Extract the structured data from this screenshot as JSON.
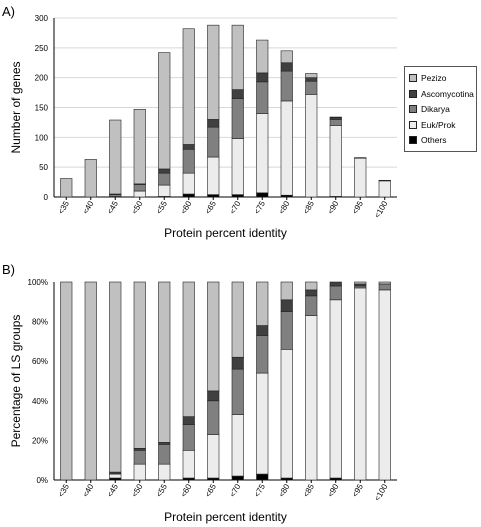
{
  "panels": {
    "a_label": "A)",
    "b_label": "B)"
  },
  "legend": {
    "items": [
      {
        "label": "Pezizo",
        "color": "#c0c0c0"
      },
      {
        "label": "Ascomycotina",
        "color": "#404040"
      },
      {
        "label": "Dikarya",
        "color": "#808080"
      },
      {
        "label": "Euk/Prok",
        "color": "#ececec"
      },
      {
        "label": "Others",
        "color": "#000000"
      }
    ]
  },
  "chart_data": [
    {
      "type": "bar",
      "stacked": true,
      "ylabel": "Number of genes",
      "xlabel": "Protein percent identity",
      "ylim": [
        0,
        300
      ],
      "yticks": [
        "0",
        "50",
        "100",
        "150",
        "200",
        "250",
        "300"
      ],
      "grid": true,
      "categories": [
        "<35",
        "<40",
        "<45",
        "<50",
        "<55",
        "<60",
        "<65",
        "<70",
        "<75",
        "<80",
        "<85",
        "<90",
        "<95",
        "<100"
      ],
      "series": [
        {
          "name": "Others",
          "values": [
            0,
            0,
            1,
            0,
            1,
            5,
            4,
            4,
            7,
            3,
            0,
            1,
            0,
            0
          ]
        },
        {
          "name": "Euk/Prok",
          "values": [
            0,
            0,
            2,
            10,
            19,
            35,
            63,
            94,
            133,
            158,
            172,
            119,
            65,
            27
          ]
        },
        {
          "name": "Dikarya",
          "values": [
            0,
            0,
            1,
            11,
            20,
            40,
            50,
            67,
            53,
            50,
            22,
            10,
            1,
            1
          ]
        },
        {
          "name": "Ascomycotina",
          "values": [
            0,
            0,
            1,
            1,
            7,
            8,
            13,
            15,
            15,
            14,
            6,
            3,
            0,
            0
          ]
        },
        {
          "name": "Pezizo",
          "values": [
            31,
            63,
            124,
            125,
            195,
            194,
            158,
            108,
            55,
            20,
            7,
            1,
            0,
            0
          ]
        }
      ]
    },
    {
      "type": "bar",
      "stacked": true,
      "percent": true,
      "ylabel": "Percentage of LS groups",
      "xlabel": "Protein percent identity",
      "ylim": [
        0,
        100
      ],
      "yticks": [
        "0%",
        "20%",
        "40%",
        "60%",
        "80%",
        "100%"
      ],
      "categories": [
        "<35",
        "<40",
        "<45",
        "<50",
        "<55",
        "<60",
        "<65",
        "<70",
        "<75",
        "<80",
        "<85",
        "<90",
        "<95",
        "<100"
      ],
      "series": [
        {
          "name": "Others",
          "values": [
            0,
            0,
            1,
            0,
            0,
            1,
            1,
            2,
            3,
            1,
            0,
            1,
            0,
            0
          ]
        },
        {
          "name": "Euk/Prok",
          "values": [
            0,
            0,
            2,
            8,
            8,
            14,
            22,
            31,
            51,
            65,
            83,
            90,
            97,
            96
          ]
        },
        {
          "name": "Dikarya",
          "values": [
            0,
            0,
            0,
            7,
            10,
            13,
            17,
            23,
            19,
            19,
            10,
            7,
            1,
            3
          ]
        },
        {
          "name": "Ascomycotina",
          "values": [
            0,
            0,
            1,
            1,
            1,
            4,
            5,
            6,
            5,
            6,
            3,
            2,
            1,
            0
          ]
        },
        {
          "name": "Pezizo",
          "values": [
            100,
            100,
            96,
            84,
            81,
            68,
            55,
            38,
            22,
            9,
            4,
            0,
            1,
            1
          ]
        }
      ]
    }
  ]
}
